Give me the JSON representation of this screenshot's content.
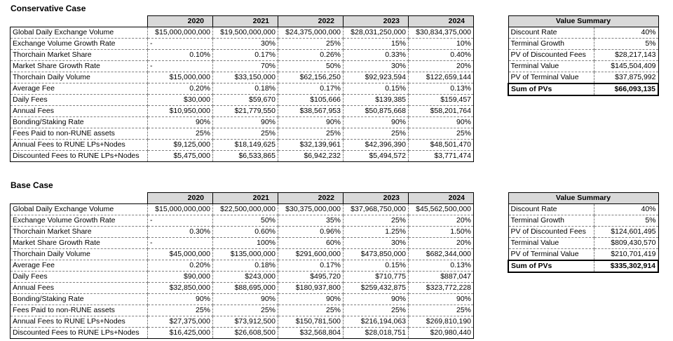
{
  "colors": {
    "background": "#ffffff",
    "header_bg": "#d9d9d9",
    "table_border": "#000000",
    "grid_dash": "#808080"
  },
  "sections": [
    {
      "title": "Conservative Case",
      "years": [
        "2020",
        "2021",
        "2022",
        "2023",
        "2024"
      ],
      "rows": [
        {
          "label": "Global Daily Exchange Volume",
          "values": [
            "$15,000,000,000",
            "$19,500,000,000",
            "$24,375,000,000",
            "$28,031,250,000",
            "$30,834,375,000"
          ]
        },
        {
          "label": "Exchange Volume Growth Rate",
          "values": [
            "-",
            "30%",
            "25%",
            "15%",
            "10%"
          ]
        },
        {
          "label": "Thorchain Market Share",
          "values": [
            "0.10%",
            "0.17%",
            "0.26%",
            "0.33%",
            "0.40%"
          ]
        },
        {
          "label": "Market Share Growth Rate",
          "values": [
            "-",
            "70%",
            "50%",
            "30%",
            "20%"
          ]
        },
        {
          "label": "Thorchain Daily Volume",
          "values": [
            "$15,000,000",
            "$33,150,000",
            "$62,156,250",
            "$92,923,594",
            "$122,659,144"
          ]
        },
        {
          "label": "Average Fee",
          "values": [
            "0.20%",
            "0.18%",
            "0.17%",
            "0.15%",
            "0.13%"
          ]
        },
        {
          "label": "Daily Fees",
          "values": [
            "$30,000",
            "$59,670",
            "$105,666",
            "$139,385",
            "$159,457"
          ]
        },
        {
          "label": "Annual Fees",
          "values": [
            "$10,950,000",
            "$21,779,550",
            "$38,567,953",
            "$50,875,668",
            "$58,201,764"
          ]
        },
        {
          "label": "Bonding/Staking Rate",
          "values": [
            "90%",
            "90%",
            "90%",
            "90%",
            "90%"
          ]
        },
        {
          "label": "Fees Paid to non-RUNE assets",
          "values": [
            "25%",
            "25%",
            "25%",
            "25%",
            "25%"
          ]
        },
        {
          "label": "Annual Fees to RUNE LPs+Nodes",
          "values": [
            "$9,125,000",
            "$18,149,625",
            "$32,139,961",
            "$42,396,390",
            "$48,501,470"
          ]
        },
        {
          "label": "Discounted Fees to RUNE LPs+Nodes",
          "values": [
            "$5,475,000",
            "$6,533,865",
            "$6,942,232",
            "$5,494,572",
            "$3,771,474"
          ]
        }
      ],
      "summary": {
        "title": "Value Summary",
        "rows": [
          {
            "label": "Discount Rate",
            "value": "40%"
          },
          {
            "label": "Terminal Growth",
            "value": "5%"
          },
          {
            "label": "PV of Discounted Fees",
            "value": "$28,217,143"
          },
          {
            "label": "Terminal Value",
            "value": "$145,504,409"
          },
          {
            "label": "PV of Terminal Value",
            "value": "$37,875,992"
          }
        ],
        "total": {
          "label": "Sum of PVs",
          "value": "$66,093,135"
        }
      }
    },
    {
      "title": "Base Case",
      "years": [
        "2020",
        "2021",
        "2022",
        "2023",
        "2024"
      ],
      "rows": [
        {
          "label": "Global Daily Exchange Volume",
          "values": [
            "$15,000,000,000",
            "$22,500,000,000",
            "$30,375,000,000",
            "$37,968,750,000",
            "$45,562,500,000"
          ]
        },
        {
          "label": "Exchange Volume Growth Rate",
          "values": [
            "-",
            "50%",
            "35%",
            "25%",
            "20%"
          ]
        },
        {
          "label": "Thorchain Market Share",
          "values": [
            "0.30%",
            "0.60%",
            "0.96%",
            "1.25%",
            "1.50%"
          ]
        },
        {
          "label": "Market Share Growth Rate",
          "values": [
            "-",
            "100%",
            "60%",
            "30%",
            "20%"
          ]
        },
        {
          "label": "Thorchain Daily Volume",
          "values": [
            "$45,000,000",
            "$135,000,000",
            "$291,600,000",
            "$473,850,000",
            "$682,344,000"
          ]
        },
        {
          "label": "Average Fee",
          "values": [
            "0.20%",
            "0.18%",
            "0.17%",
            "0.15%",
            "0.13%"
          ]
        },
        {
          "label": "Daily Fees",
          "values": [
            "$90,000",
            "$243,000",
            "$495,720",
            "$710,775",
            "$887,047"
          ]
        },
        {
          "label": "Annual Fees",
          "values": [
            "$32,850,000",
            "$88,695,000",
            "$180,937,800",
            "$259,432,875",
            "$323,772,228"
          ]
        },
        {
          "label": "Bonding/Staking Rate",
          "values": [
            "90%",
            "90%",
            "90%",
            "90%",
            "90%"
          ]
        },
        {
          "label": "Fees Paid to non-RUNE assets",
          "values": [
            "25%",
            "25%",
            "25%",
            "25%",
            "25%"
          ]
        },
        {
          "label": "Annual Fees to RUNE LPs+Nodes",
          "values": [
            "$27,375,000",
            "$73,912,500",
            "$150,781,500",
            "$216,194,063",
            "$269,810,190"
          ]
        },
        {
          "label": "Discounted Fees to RUNE LPs+Nodes",
          "values": [
            "$16,425,000",
            "$26,608,500",
            "$32,568,804",
            "$28,018,751",
            "$20,980,440"
          ]
        }
      ],
      "summary": {
        "title": "Value Summary",
        "rows": [
          {
            "label": "Discount Rate",
            "value": "40%"
          },
          {
            "label": "Terminal Growth",
            "value": "5%"
          },
          {
            "label": "PV of Discounted Fees",
            "value": "$124,601,495"
          },
          {
            "label": "Terminal Value",
            "value": "$809,430,570"
          },
          {
            "label": "PV of Terminal Value",
            "value": "$210,701,419"
          }
        ],
        "total": {
          "label": "Sum of PVs",
          "value": "$335,302,914"
        }
      }
    }
  ]
}
